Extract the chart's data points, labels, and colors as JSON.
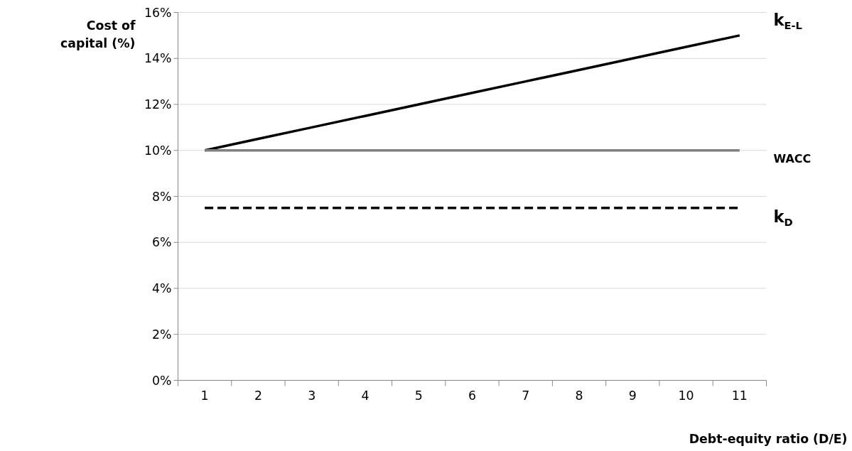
{
  "chart_data": {
    "type": "line",
    "xlabel": "Debt-equity ratio (D/E)",
    "ylabel": "Cost of capital (%)",
    "categories": [
      "1",
      "2",
      "3",
      "4",
      "5",
      "6",
      "7",
      "8",
      "9",
      "10",
      "11"
    ],
    "series": [
      {
        "name": "k$_{E-L}$",
        "color": "#000000",
        "values": [
          10,
          10.5,
          11,
          11.5,
          12,
          12.5,
          13,
          13.5,
          14,
          14.5,
          15
        ]
      },
      {
        "name": "WACC",
        "color": "#808080",
        "values": [
          10,
          10,
          10,
          10,
          10,
          10,
          10,
          10,
          10,
          10,
          10
        ]
      },
      {
        "name": "k$_{D}$",
        "color": "#000000",
        "line_style": "dashed",
        "values": [
          7.5,
          7.5,
          7.5,
          7.5,
          7.5,
          7.5,
          7.5,
          7.5,
          7.5,
          7.5,
          7.5
        ]
      }
    ],
    "ylim": [
      0,
      16
    ],
    "yticks": [
      {
        "value": 0,
        "label": "0%"
      },
      {
        "value": 2,
        "label": "2%"
      },
      {
        "value": 4,
        "label": "4%"
      },
      {
        "value": 6,
        "label": "6%"
      },
      {
        "value": 8,
        "label": "8%"
      },
      {
        "value": 10,
        "label": "10%"
      },
      {
        "value": 12,
        "label": "12%"
      },
      {
        "value": 14,
        "label": "14%"
      },
      {
        "value": 16,
        "label": "16%"
      }
    ],
    "grid": "y",
    "legend": false,
    "marker": "none",
    "line_style": "solid"
  }
}
